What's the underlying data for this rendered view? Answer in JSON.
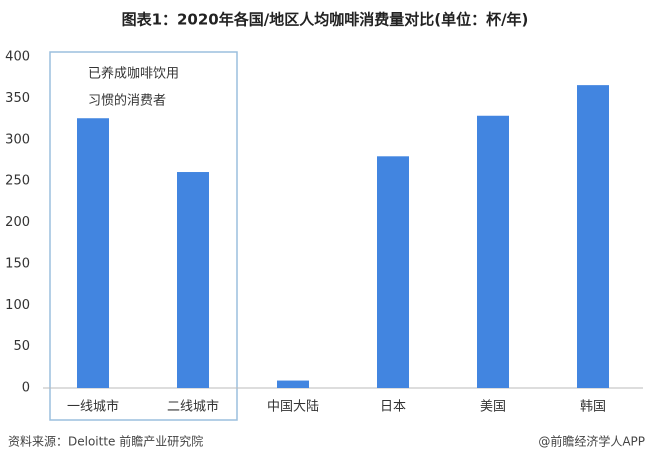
{
  "chart_data": {
    "type": "bar",
    "title": "图表1：2020年各国/地区人均咖啡消费量对比(单位：杯/年)",
    "categories": [
      "一线城市",
      "二线城市",
      "中国大陆",
      "日本",
      "美国",
      "韩国"
    ],
    "values": [
      326,
      261,
      9,
      280,
      329,
      366
    ],
    "color": "#4285e0",
    "ylim": [
      0,
      400
    ],
    "yticks": [
      0,
      50,
      100,
      150,
      200,
      250,
      300,
      350,
      400
    ],
    "grid": false,
    "annotation": [
      "已养成咖啡饮用",
      "习惯的消费者"
    ],
    "source": "资料来源：Deloitte 前瞻产业研究院",
    "credit": "@前瞻经济学人APP"
  }
}
